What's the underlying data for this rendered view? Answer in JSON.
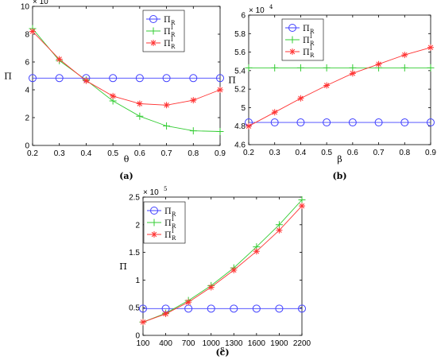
{
  "chart_data": [
    {
      "type": "line",
      "caption": "(a)",
      "xlabel": "θ",
      "ylabel": "Π",
      "y_exponent": "× 10",
      "y_exponent_power": "4",
      "xlim": [
        0.2,
        0.9
      ],
      "ylim": [
        0,
        100000
      ],
      "x_ticks": [
        "0.2",
        "0.3",
        "0.4",
        "0.5",
        "0.6",
        "0.7",
        "0.8",
        "0.9"
      ],
      "y_ticks": [
        "0",
        "2",
        "4",
        "6",
        "8",
        "10"
      ],
      "x": [
        0.2,
        0.3,
        0.4,
        0.5,
        0.6,
        0.7,
        0.8,
        0.9
      ],
      "series": [
        {
          "name": "Π",
          "name_sub": "R",
          "name_sup": "",
          "color": "#4040ff",
          "marker": "circle",
          "values": [
            48400,
            48400,
            48400,
            48400,
            48400,
            48400,
            48400,
            48400
          ]
        },
        {
          "name": "Π",
          "name_sub": "R",
          "name_sup": "I",
          "color": "#33cc33",
          "marker": "plus",
          "values": [
            84000,
            61000,
            47000,
            32000,
            21000,
            14000,
            10500,
            10000
          ]
        },
        {
          "name": "Π",
          "name_sub": "R",
          "name_sup": "I",
          "color": "#ff3333",
          "marker": "star",
          "values": [
            82000,
            62000,
            46500,
            35500,
            30000,
            29000,
            32500,
            40000
          ]
        }
      ],
      "legend": "top-right",
      "grid": false
    },
    {
      "type": "line",
      "caption": "(b)",
      "xlabel": "β",
      "ylabel": "Π",
      "y_exponent": "× 10",
      "y_exponent_power": "4",
      "xlim": [
        0.2,
        0.9
      ],
      "ylim": [
        46000,
        60000
      ],
      "x_ticks": [
        "0.2",
        "0.3",
        "0.4",
        "0.5",
        "0.6",
        "0.7",
        "0.8",
        "0.9"
      ],
      "y_ticks": [
        "4.6",
        "4.8",
        "5",
        "5.2",
        "5.4",
        "5.6",
        "5.8",
        "6"
      ],
      "x": [
        0.2,
        0.3,
        0.4,
        0.5,
        0.6,
        0.7,
        0.8,
        0.9
      ],
      "series": [
        {
          "name": "Π",
          "name_sub": "R",
          "name_sup": "",
          "color": "#4040ff",
          "marker": "circle",
          "values": [
            48400,
            48400,
            48400,
            48400,
            48400,
            48400,
            48400,
            48400
          ]
        },
        {
          "name": "Π",
          "name_sub": "R",
          "name_sup": "I",
          "color": "#33cc33",
          "marker": "plus",
          "values": [
            54300,
            54300,
            54300,
            54300,
            54300,
            54300,
            54300,
            54300
          ]
        },
        {
          "name": "Π",
          "name_sub": "R",
          "name_sup": "I",
          "color": "#ff3333",
          "marker": "star",
          "values": [
            48000,
            49500,
            51000,
            52400,
            53700,
            54700,
            55700,
            56500
          ]
        }
      ],
      "legend": "top-right",
      "grid": false
    },
    {
      "type": "line",
      "caption": "(c)",
      "xlabel": "s",
      "ylabel": "Π",
      "y_exponent": "× 10",
      "y_exponent_power": "5",
      "xlim": [
        100,
        2200
      ],
      "ylim": [
        0,
        250000
      ],
      "x_ticks": [
        "100",
        "400",
        "700",
        "1000",
        "1300",
        "1600",
        "1900",
        "2200"
      ],
      "y_ticks": [
        "0",
        "0.5",
        "1",
        "1.5",
        "2",
        "2.5"
      ],
      "x": [
        100,
        400,
        700,
        1000,
        1300,
        1600,
        1900,
        2200
      ],
      "series": [
        {
          "name": "Π",
          "name_sub": "R",
          "name_sup": "",
          "color": "#4040ff",
          "marker": "circle",
          "values": [
            48400,
            48400,
            48400,
            48400,
            48400,
            48400,
            48400,
            48400
          ]
        },
        {
          "name": "Π",
          "name_sub": "R",
          "name_sup": "I",
          "color": "#33cc33",
          "marker": "plus",
          "values": [
            24000,
            40000,
            63000,
            90000,
            122000,
            160000,
            200000,
            245000
          ]
        },
        {
          "name": "Π",
          "name_sub": "R",
          "name_sup": "I",
          "color": "#ff3333",
          "marker": "star",
          "values": [
            24000,
            39000,
            60000,
            87000,
            118000,
            152000,
            190000,
            234000
          ]
        }
      ],
      "legend": "top-left",
      "grid": false
    }
  ]
}
